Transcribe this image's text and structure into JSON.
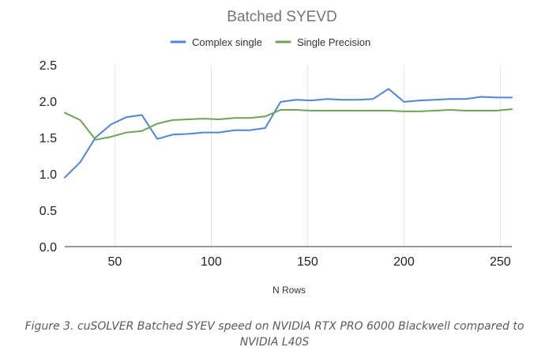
{
  "chart_data": {
    "type": "line",
    "title": "Batched SYEVD",
    "xlabel": "N Rows",
    "ylabel": "",
    "xlim": [
      24,
      256
    ],
    "ylim": [
      0,
      2.5
    ],
    "xticks": [
      50,
      100,
      150,
      200,
      250
    ],
    "xtick_labels": [
      "50",
      "100",
      "150",
      "200",
      "250"
    ],
    "yticks": [
      0,
      0.5,
      1,
      1.5,
      2,
      2.5
    ],
    "ytick_labels": [
      "0.0",
      "0.5",
      "1.0",
      "1.5",
      "2.0",
      "2.5"
    ],
    "grid": "vertical",
    "legend": "top",
    "x": [
      24,
      32,
      40,
      48,
      56,
      64,
      72,
      80,
      88,
      96,
      104,
      112,
      120,
      128,
      136,
      144,
      152,
      160,
      168,
      176,
      184,
      192,
      200,
      208,
      216,
      224,
      232,
      240,
      248,
      256
    ],
    "series": [
      {
        "name": "Complex single",
        "color": "#4a86e8",
        "values": [
          0.95,
          1.16,
          1.5,
          1.68,
          1.78,
          1.81,
          1.48,
          1.54,
          1.55,
          1.57,
          1.57,
          1.6,
          1.6,
          1.63,
          1.99,
          2.02,
          2.01,
          2.03,
          2.02,
          2.02,
          2.03,
          2.17,
          1.99,
          2.01,
          2.02,
          2.03,
          2.03,
          2.06,
          2.05,
          2.05
        ]
      },
      {
        "name": "Single Precision",
        "color": "#6aa84f",
        "values": [
          1.84,
          1.74,
          1.47,
          1.51,
          1.57,
          1.59,
          1.69,
          1.74,
          1.75,
          1.76,
          1.75,
          1.77,
          1.77,
          1.79,
          1.88,
          1.88,
          1.87,
          1.87,
          1.87,
          1.87,
          1.87,
          1.87,
          1.86,
          1.86,
          1.87,
          1.88,
          1.87,
          1.87,
          1.87,
          1.89
        ]
      }
    ]
  },
  "caption": {
    "line1": "Figure 3. cuSOLVER Batched SYEV speed on NVIDIA RTX PRO 6000 Blackwell compared to",
    "line2": "NVIDIA L40S"
  }
}
